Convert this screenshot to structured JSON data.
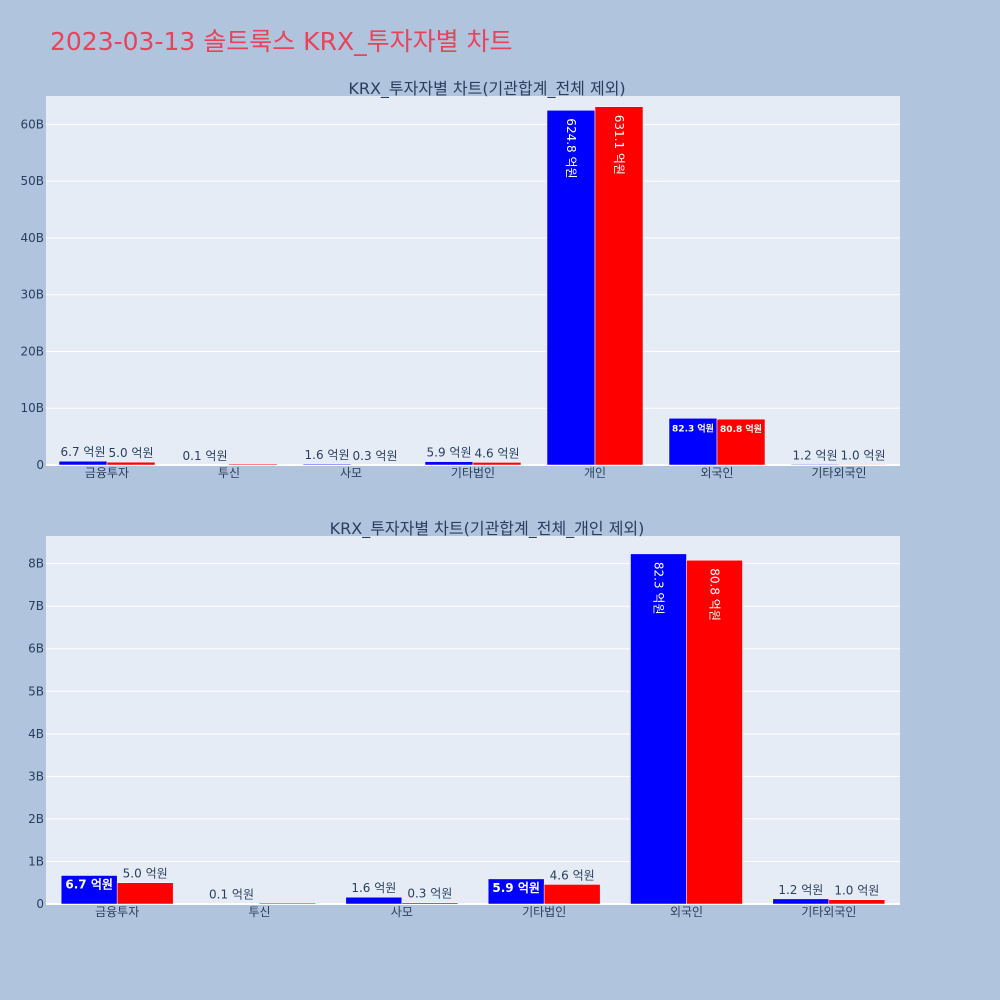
{
  "page_title": "2023-03-13 솔트룩스 KRX_투자자별 차트",
  "colors": {
    "buy": "#0000ff",
    "sell": "#ff0000",
    "title": "#e8435a",
    "plot_bg": "#e5ecf6",
    "page_bg": "#b0c4de"
  },
  "chart_data": [
    {
      "type": "bar",
      "title": "KRX_투자자별 차트(기관합계_전체 제외)",
      "categories": [
        "금융투자",
        "투신",
        "사모",
        "기타법인",
        "개인",
        "외국인",
        "기타외국인"
      ],
      "series": [
        {
          "color": "#0000ff",
          "values": [
            670000000,
            10000000,
            160000000,
            590000000,
            62480000000,
            8230000000,
            120000000
          ],
          "labels": [
            "6.7 억원",
            "0.1 억원",
            "1.6 억원",
            "5.9 억원",
            "624.8 억원",
            "82.3 억원",
            "1.2 억원"
          ]
        },
        {
          "color": "#ff0000",
          "values": [
            500000000,
            0,
            30000000,
            460000000,
            63110000000,
            8080000000,
            100000000
          ],
          "labels": [
            "5.0 억원",
            "",
            "0.3 억원",
            "4.6 억원",
            "631.1 억원",
            "80.8 억원",
            "1.0 억원"
          ]
        }
      ],
      "ylim": [
        0,
        65000000000
      ],
      "yticks": [
        0,
        10000000000,
        20000000000,
        30000000000,
        40000000000,
        50000000000,
        60000000000
      ],
      "ytick_labels": [
        "0",
        "10B",
        "20B",
        "30B",
        "40B",
        "50B",
        "60B"
      ]
    },
    {
      "type": "bar",
      "title": "KRX_투자자별 차트(기관합계_전체_개인 제외)",
      "categories": [
        "금융투자",
        "투신",
        "사모",
        "기타법인",
        "외국인",
        "기타외국인"
      ],
      "series": [
        {
          "color": "#0000ff",
          "values": [
            670000000,
            10000000,
            160000000,
            590000000,
            8230000000,
            120000000
          ],
          "labels": [
            "6.7 억원",
            "0.1 억원",
            "1.6 억원",
            "5.9 억원",
            "82.3 억원",
            "1.2 억원"
          ]
        },
        {
          "color": "#ff0000",
          "values": [
            500000000,
            0,
            30000000,
            460000000,
            8080000000,
            100000000
          ],
          "labels": [
            "5.0 억원",
            "",
            "0.3 억원",
            "4.6 억원",
            "80.8 억원",
            "1.0 억원"
          ]
        }
      ],
      "ylim": [
        0,
        8650000000
      ],
      "yticks": [
        0,
        1000000000,
        2000000000,
        3000000000,
        4000000000,
        5000000000,
        6000000000,
        7000000000,
        8000000000
      ],
      "ytick_labels": [
        "0",
        "1B",
        "2B",
        "3B",
        "4B",
        "5B",
        "6B",
        "7B",
        "8B"
      ]
    }
  ]
}
